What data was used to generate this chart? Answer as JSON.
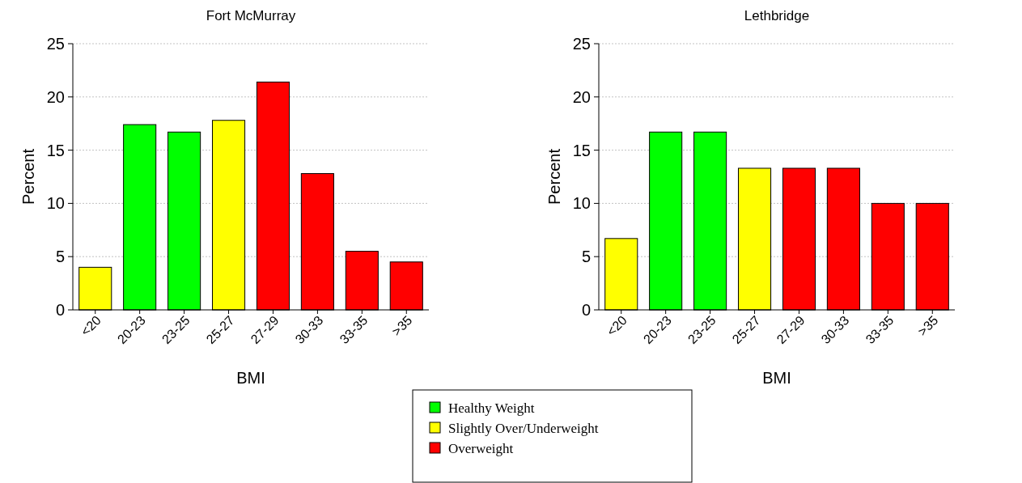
{
  "chart_data": [
    {
      "type": "bar",
      "title": "Fort McMurray",
      "xlabel": "BMI",
      "ylabel": "Percent",
      "categories": [
        "<20",
        "20-23",
        "23-25",
        "25-27",
        "27-29",
        "30-33",
        "33-35",
        ">35"
      ],
      "stacked": true,
      "series": [
        {
          "name": "Healthy Weight",
          "color": "#00ff00",
          "values": [
            null,
            17.4,
            16.7,
            null,
            null,
            null,
            null,
            null
          ]
        },
        {
          "name": "Slightly Over/Underweight",
          "color": "#ffff00",
          "values": [
            4.0,
            null,
            null,
            17.8,
            null,
            null,
            null,
            null
          ]
        },
        {
          "name": "Overweight",
          "color": "#ff0000",
          "values": [
            null,
            null,
            null,
            null,
            21.4,
            12.8,
            5.5,
            4.5
          ]
        }
      ],
      "ylim": [
        0,
        25
      ],
      "yticks": [
        0,
        5,
        10,
        15,
        20,
        25
      ],
      "grid": "y",
      "legend": "bottom right"
    },
    {
      "type": "bar",
      "title": "Lethbridge",
      "xlabel": "BMI",
      "ylabel": "Percent",
      "categories": [
        "<20",
        "20-23",
        "23-25",
        "25-27",
        "27-29",
        "30-33",
        "33-35",
        ">35"
      ],
      "stacked": true,
      "series": [
        {
          "color": "#00ff00",
          "values": [
            null,
            16.7,
            16.7,
            null,
            null,
            null,
            null,
            null
          ]
        },
        {
          "color": "#ffff00",
          "values": [
            6.7,
            null,
            null,
            13.3,
            null,
            null,
            null,
            null
          ]
        },
        {
          "color": "#ff0000",
          "values": [
            null,
            null,
            null,
            null,
            13.3,
            13.3,
            10,
            10
          ]
        }
      ],
      "ylim": [
        0,
        25
      ],
      "yticks": [
        0,
        5,
        10,
        15,
        20,
        25
      ],
      "grid": "y"
    }
  ]
}
